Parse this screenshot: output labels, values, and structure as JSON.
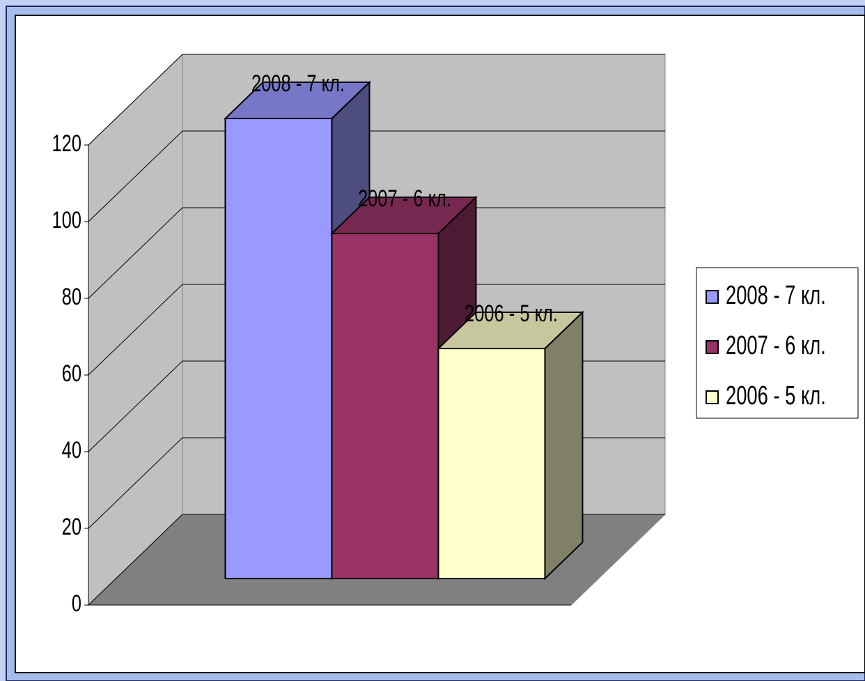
{
  "chart_data": {
    "type": "bar",
    "series": [
      {
        "name": "2008 - 7 кл.",
        "color": "#9999ff",
        "values": [
          120
        ]
      },
      {
        "name": "2007 - 6 кл.",
        "color": "#993366",
        "values": [
          90
        ]
      },
      {
        "name": "2006 - 5 кл.",
        "color": "#ffffcc",
        "values": [
          60
        ]
      }
    ],
    "ylim": [
      0,
      120
    ],
    "yticks": [
      0,
      20,
      40,
      60,
      80,
      100,
      120
    ],
    "grid": true,
    "legend": "right"
  }
}
